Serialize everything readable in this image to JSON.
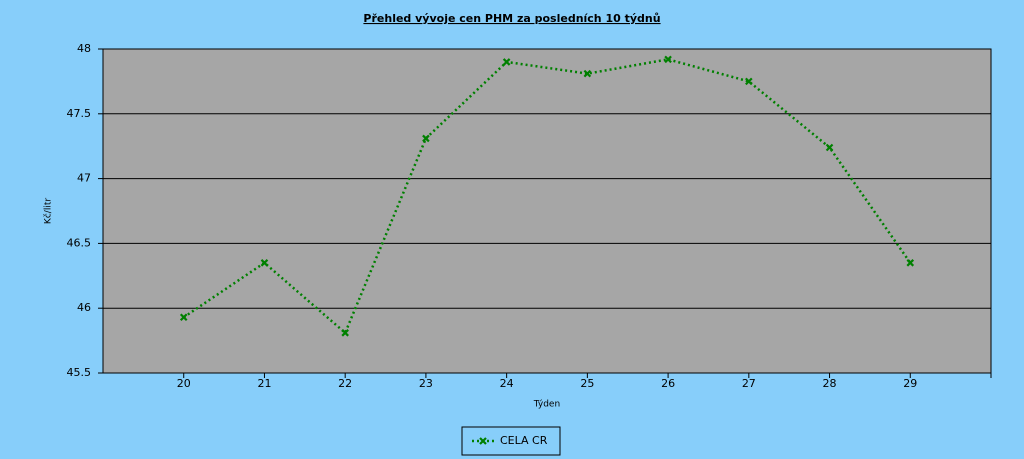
{
  "chart_data": {
    "type": "line",
    "title": "Přehled vývoje cen PHM za posledních 10 týdnů",
    "x_label": "Týden",
    "y_label": "Kč/litr",
    "categories": [
      "20",
      "21",
      "22",
      "23",
      "24",
      "25",
      "26",
      "27",
      "28",
      "29"
    ],
    "series": [
      {
        "name": "CELA CR",
        "color": "#008000",
        "values": [
          45.93,
          46.35,
          45.81,
          47.31,
          47.9,
          47.81,
          47.92,
          47.75,
          47.24,
          46.35
        ]
      }
    ],
    "ylim": [
      45.5,
      48
    ],
    "yticks": [
      45.5,
      46,
      46.5,
      47,
      47.5,
      48
    ],
    "grid": true,
    "legend": "bottom"
  }
}
